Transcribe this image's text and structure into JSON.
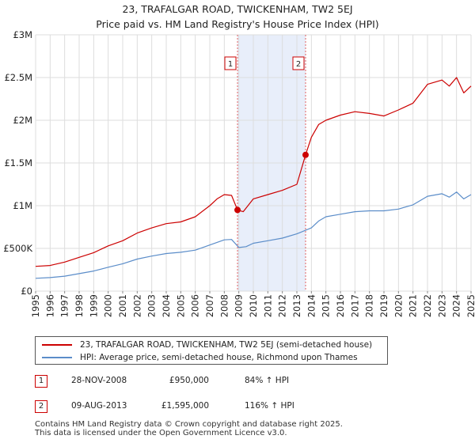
{
  "title_line1": "23, TRAFALGAR ROAD, TWICKENHAM, TW2 5EJ",
  "title_line2": "Price paid vs. HM Land Registry's House Price Index (HPI)",
  "chart_data": {
    "type": "line",
    "title": "23, TRAFALGAR ROAD, TWICKENHAM, TW2 5EJ — Price paid vs. HM Land Registry's House Price Index (HPI)",
    "xlabel": "",
    "ylabel": "",
    "xlim": [
      1995,
      2025
    ],
    "ylim": [
      0,
      3000000
    ],
    "grid": true,
    "y_ticks": [
      {
        "value": 0,
        "label": "£0"
      },
      {
        "value": 500000,
        "label": "£500K"
      },
      {
        "value": 1000000,
        "label": "£1M"
      },
      {
        "value": 1500000,
        "label": "£1.5M"
      },
      {
        "value": 2000000,
        "label": "£2M"
      },
      {
        "value": 2500000,
        "label": "£2.5M"
      },
      {
        "value": 3000000,
        "label": "£3M"
      }
    ],
    "x_ticks": [
      "1995",
      "1996",
      "1997",
      "1998",
      "1999",
      "2000",
      "2001",
      "2002",
      "2003",
      "2004",
      "2005",
      "2006",
      "2007",
      "2008",
      "2009",
      "2010",
      "2011",
      "2012",
      "2013",
      "2014",
      "2015",
      "2016",
      "2017",
      "2018",
      "2019",
      "2020",
      "2021",
      "2022",
      "2023",
      "2024",
      "2025"
    ],
    "shaded_region": {
      "from": 2008.91,
      "to": 2013.6,
      "color": "#e8eefa"
    },
    "series": [
      {
        "name": "23, TRAFALGAR ROAD, TWICKENHAM, TW2 5EJ (semi-detached house)",
        "color": "#cc0000",
        "points": [
          [
            1995,
            290000
          ],
          [
            1996,
            300000
          ],
          [
            1997,
            340000
          ],
          [
            1998,
            395000
          ],
          [
            1999,
            450000
          ],
          [
            2000,
            530000
          ],
          [
            2001,
            590000
          ],
          [
            2002,
            680000
          ],
          [
            2003,
            740000
          ],
          [
            2004,
            790000
          ],
          [
            2005,
            810000
          ],
          [
            2006,
            870000
          ],
          [
            2007,
            1000000
          ],
          [
            2007.5,
            1080000
          ],
          [
            2008,
            1130000
          ],
          [
            2008.5,
            1120000
          ],
          [
            2008.91,
            950000
          ],
          [
            2009.3,
            930000
          ],
          [
            2010,
            1080000
          ],
          [
            2011,
            1130000
          ],
          [
            2012,
            1180000
          ],
          [
            2013,
            1250000
          ],
          [
            2013.6,
            1595000
          ],
          [
            2014,
            1800000
          ],
          [
            2014.5,
            1950000
          ],
          [
            2015,
            2000000
          ],
          [
            2016,
            2060000
          ],
          [
            2017,
            2100000
          ],
          [
            2018,
            2080000
          ],
          [
            2019,
            2050000
          ],
          [
            2020,
            2120000
          ],
          [
            2021,
            2200000
          ],
          [
            2022,
            2420000
          ],
          [
            2023,
            2470000
          ],
          [
            2023.5,
            2400000
          ],
          [
            2024,
            2500000
          ],
          [
            2024.5,
            2320000
          ],
          [
            2025,
            2400000
          ]
        ]
      },
      {
        "name": "HPI: Average price, semi-detached house, Richmond upon Thames",
        "color": "#5b8dc9",
        "points": [
          [
            1995,
            150000
          ],
          [
            1996,
            158000
          ],
          [
            1997,
            175000
          ],
          [
            1998,
            205000
          ],
          [
            1999,
            235000
          ],
          [
            2000,
            280000
          ],
          [
            2001,
            320000
          ],
          [
            2002,
            375000
          ],
          [
            2003,
            410000
          ],
          [
            2004,
            440000
          ],
          [
            2005,
            455000
          ],
          [
            2006,
            480000
          ],
          [
            2007,
            540000
          ],
          [
            2008,
            600000
          ],
          [
            2008.5,
            605000
          ],
          [
            2009,
            510000
          ],
          [
            2009.5,
            520000
          ],
          [
            2010,
            560000
          ],
          [
            2011,
            590000
          ],
          [
            2012,
            620000
          ],
          [
            2013,
            670000
          ],
          [
            2014,
            740000
          ],
          [
            2014.5,
            820000
          ],
          [
            2015,
            870000
          ],
          [
            2016,
            900000
          ],
          [
            2017,
            930000
          ],
          [
            2018,
            940000
          ],
          [
            2019,
            940000
          ],
          [
            2020,
            960000
          ],
          [
            2021,
            1010000
          ],
          [
            2022,
            1110000
          ],
          [
            2023,
            1140000
          ],
          [
            2023.5,
            1100000
          ],
          [
            2024,
            1160000
          ],
          [
            2024.5,
            1080000
          ],
          [
            2025,
            1130000
          ]
        ]
      }
    ],
    "sales": [
      {
        "label": "1",
        "x": 2008.91,
        "price": 950000
      },
      {
        "label": "2",
        "x": 2013.6,
        "price": 1595000
      }
    ]
  },
  "legend": {
    "items": [
      {
        "label": "23, TRAFALGAR ROAD, TWICKENHAM, TW2 5EJ (semi-detached house)",
        "color": "#cc0000"
      },
      {
        "label": "HPI: Average price, semi-detached house, Richmond upon Thames",
        "color": "#5b8dc9"
      }
    ]
  },
  "transactions": [
    {
      "num": "1",
      "date": "28-NOV-2008",
      "price": "£950,000",
      "hpi": "84% ↑ HPI"
    },
    {
      "num": "2",
      "date": "09-AUG-2013",
      "price": "£1,595,000",
      "hpi": "116% ↑ HPI"
    }
  ],
  "footer": {
    "line1": "Contains HM Land Registry data © Crown copyright and database right 2025.",
    "line2": "This data is licensed under the Open Government Licence v3.0."
  }
}
